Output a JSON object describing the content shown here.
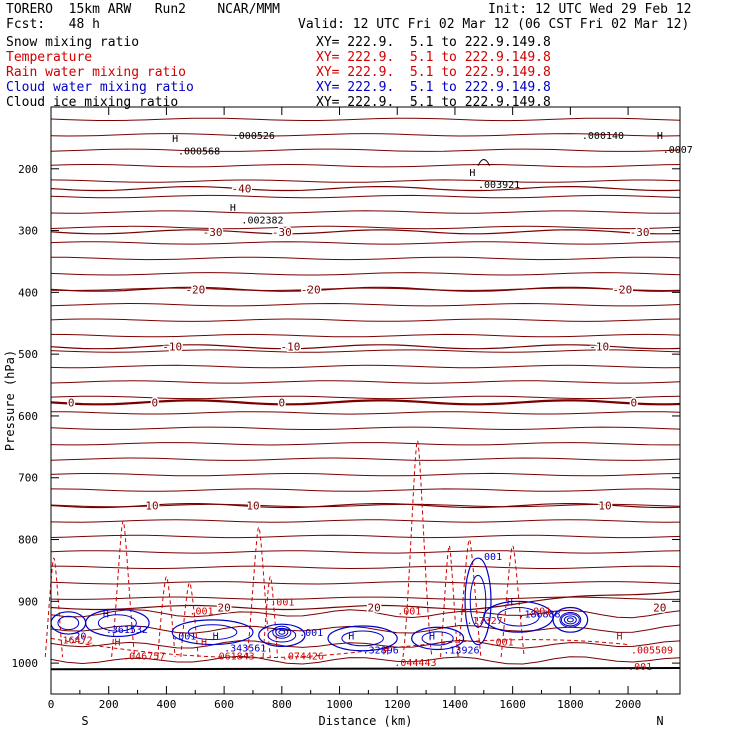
{
  "header": {
    "model": "TORERO  15km ARW   Run2    NCAR/MMM",
    "init": "Init: 12 UTC Wed 29 Feb 12",
    "fcst": "Fcst:   48 h",
    "valid": "Valid: 12 UTC Fri 02 Mar 12 (06 CST Fri 02 Mar 12)"
  },
  "legend": [
    {
      "name": "Snow mixing ratio",
      "xy": "XY= 222.9.  5.1 to 222.9.149.8",
      "color": "#000000"
    },
    {
      "name": "Temperature",
      "xy": "XY= 222.9.  5.1 to 222.9.149.8",
      "color": "#d00000"
    },
    {
      "name": "Rain water mixing ratio",
      "xy": "XY= 222.9.  5.1 to 222.9.149.8",
      "color": "#d00000"
    },
    {
      "name": "Cloud water mixing ratio",
      "xy": "XY= 222.9.  5.1 to 222.9.149.8",
      "color": "#0000c8"
    },
    {
      "name": "Cloud ice mixing ratio",
      "xy": "XY= 222.9.  5.1 to 222.9.149.8",
      "color": "#000000"
    }
  ],
  "chart_data": {
    "type": "cross-section contour",
    "xlabel": "Distance (km)",
    "ylabel": "Pressure (hPa)",
    "xlim": [
      0,
      2180
    ],
    "ylim": [
      1050,
      100
    ],
    "x_ticks": [
      0,
      200,
      400,
      600,
      800,
      1000,
      1200,
      1400,
      1600,
      1800,
      2000
    ],
    "y_ticks": [
      200,
      300,
      400,
      500,
      600,
      700,
      800,
      900,
      1000
    ],
    "endpoints": {
      "left": "S",
      "right": "N"
    },
    "temperature_contours": [
      {
        "value": -40,
        "pressure": 232
      },
      {
        "value": -30,
        "pressure": 302
      },
      {
        "value": -20,
        "pressure": 395
      },
      {
        "value": -10,
        "pressure": 488
      },
      {
        "value": 0,
        "pressure": 578
      },
      {
        "value": 10,
        "pressure": 745
      },
      {
        "value": 20,
        "pressure": 910
      }
    ],
    "temperature_label_positions": [
      {
        "value": -40,
        "x": [
          660
        ]
      },
      {
        "value": -30,
        "x": [
          560,
          800,
          2040
        ]
      },
      {
        "value": -20,
        "x": [
          500,
          900,
          1980
        ]
      },
      {
        "value": -10,
        "x": [
          420,
          830,
          1900
        ]
      },
      {
        "value": 0,
        "x": [
          70,
          360,
          800,
          2020
        ]
      },
      {
        "value": 10,
        "x": [
          350,
          700,
          1920
        ]
      },
      {
        "value": 20,
        "x": [
          600,
          1120,
          2110
        ]
      }
    ],
    "annotations": [
      {
        "text": "H",
        "x": 420,
        "p": 150,
        "color": "#000000"
      },
      {
        "text": ".000568",
        "x": 440,
        "p": 170,
        "color": "#000000"
      },
      {
        "text": ".000526",
        "x": 630,
        "p": 145,
        "color": "#000000"
      },
      {
        "text": ".000140",
        "x": 1840,
        "p": 145,
        "color": "#000000"
      },
      {
        "text": "H",
        "x": 2100,
        "p": 145,
        "color": "#000000"
      },
      {
        "text": ".0007",
        "x": 2120,
        "p": 168,
        "color": "#000000"
      },
      {
        "text": "H",
        "x": 1450,
        "p": 205,
        "color": "#000000"
      },
      {
        "text": ".003921",
        "x": 1480,
        "p": 225,
        "color": "#000000"
      },
      {
        "text": "H",
        "x": 620,
        "p": 262,
        "color": "#000000"
      },
      {
        "text": ".002382",
        "x": 660,
        "p": 282,
        "color": "#000000"
      },
      {
        "text": ".001",
        "x": 480,
        "p": 915,
        "color": "#d00000"
      },
      {
        "text": ".001",
        "x": 760,
        "p": 900,
        "color": "#d00000"
      },
      {
        "text": ".001",
        "x": 1200,
        "p": 915,
        "color": "#d00000"
      },
      {
        "text": ".001",
        "x": 1480,
        "p": 827,
        "color": "#0000c8"
      },
      {
        "text": "H",
        "x": 1580,
        "p": 900,
        "color": "#0000c8"
      },
      {
        "text": ".186888",
        "x": 1620,
        "p": 920,
        "color": "#0000c8"
      },
      {
        "text": ".001",
        "x": 1650,
        "p": 915,
        "color": "#d00000"
      },
      {
        "text": "H",
        "x": 1420,
        "p": 915,
        "color": "#d00000"
      },
      {
        "text": ".17327",
        "x": 1440,
        "p": 930,
        "color": "#d00000"
      },
      {
        "text": "H",
        "x": 180,
        "p": 920,
        "color": "#0000c8"
      },
      {
        "text": ".361532",
        "x": 190,
        "p": 945,
        "color": "#0000c8"
      },
      {
        "text": ".001",
        "x": 420,
        "p": 955,
        "color": "#0000c8"
      },
      {
        "text": "H",
        "x": 560,
        "p": 955,
        "color": "#0000c8"
      },
      {
        "text": ".343561",
        "x": 600,
        "p": 975,
        "color": "#0000c8"
      },
      {
        "text": ".001",
        "x": 860,
        "p": 950,
        "color": "#0000c8"
      },
      {
        "text": "H",
        "x": 1030,
        "p": 955,
        "color": "#0000c8"
      },
      {
        "text": ".32896",
        "x": 1080,
        "p": 978,
        "color": "#0000c8"
      },
      {
        "text": "H",
        "x": 1310,
        "p": 955,
        "color": "#0000c8"
      },
      {
        "text": ".13926",
        "x": 1360,
        "p": 978,
        "color": "#0000c8"
      },
      {
        "text": ".20",
        "x": 60,
        "p": 955,
        "color": "#0000c8"
      },
      {
        "text": "16472",
        "x": 40,
        "p": 962,
        "color": "#d00000"
      },
      {
        "text": "H",
        "x": 220,
        "p": 965,
        "color": "#d00000"
      },
      {
        "text": ".046757",
        "x": 250,
        "p": 988,
        "color": "#d00000"
      },
      {
        "text": "H",
        "x": 520,
        "p": 965,
        "color": "#d00000"
      },
      {
        "text": ".061843",
        "x": 560,
        "p": 988,
        "color": "#d00000"
      },
      {
        "text": ".074426",
        "x": 800,
        "p": 988,
        "color": "#d00000"
      },
      {
        "text": "H",
        "x": 1150,
        "p": 980,
        "color": "#d00000"
      },
      {
        "text": ".044443",
        "x": 1190,
        "p": 998,
        "color": "#d00000"
      },
      {
        "text": ".001",
        "x": 1520,
        "p": 965,
        "color": "#d00000"
      },
      {
        "text": "H",
        "x": 1960,
        "p": 955,
        "color": "#d00000"
      },
      {
        "text": ".005509",
        "x": 2010,
        "p": 978,
        "color": "#d00000"
      },
      {
        "text": ".001",
        "x": 2000,
        "p": 1005,
        "color": "#d00000"
      }
    ]
  }
}
